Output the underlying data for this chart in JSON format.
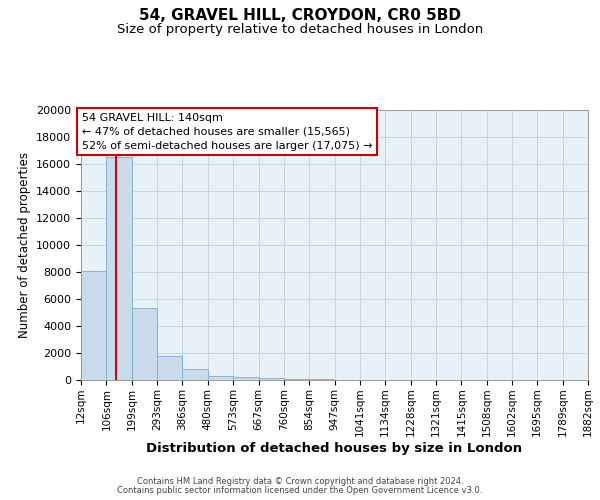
{
  "title": "54, GRAVEL HILL, CROYDON, CR0 5BD",
  "subtitle": "Size of property relative to detached houses in London",
  "xlabel": "Distribution of detached houses by size in London",
  "ylabel": "Number of detached properties",
  "bar_color": "#c9daea",
  "bar_edge_color": "#7badd4",
  "background_color": "#e8f0f8",
  "grid_color": "#b8ccd8",
  "ylim": [
    0,
    20000
  ],
  "yticks": [
    0,
    2000,
    4000,
    6000,
    8000,
    10000,
    12000,
    14000,
    16000,
    18000,
    20000
  ],
  "bin_edges": [
    12,
    106,
    199,
    293,
    386,
    480,
    573,
    667,
    760,
    854,
    947,
    1041,
    1134,
    1228,
    1321,
    1415,
    1508,
    1602,
    1695,
    1789,
    1882
  ],
  "bin_labels": [
    "12sqm",
    "106sqm",
    "199sqm",
    "293sqm",
    "386sqm",
    "480sqm",
    "573sqm",
    "667sqm",
    "760sqm",
    "854sqm",
    "947sqm",
    "1041sqm",
    "1134sqm",
    "1228sqm",
    "1321sqm",
    "1415sqm",
    "1508sqm",
    "1602sqm",
    "1695sqm",
    "1789sqm",
    "1882sqm"
  ],
  "values": [
    8100,
    16500,
    5300,
    1750,
    800,
    290,
    200,
    150,
    90,
    55,
    30,
    20,
    15,
    10,
    8,
    5,
    4,
    3,
    2,
    2
  ],
  "red_line_x": 140,
  "annotation_title": "54 GRAVEL HILL: 140sqm",
  "annotation_line1": "← 47% of detached houses are smaller (15,565)",
  "annotation_line2": "52% of semi-detached houses are larger (17,075) →",
  "annotation_box_facecolor": "#ffffff",
  "annotation_box_edgecolor": "#cc0000",
  "red_line_color": "#cc0000",
  "footer_line1": "Contains HM Land Registry data © Crown copyright and database right 2024.",
  "footer_line2": "Contains public sector information licensed under the Open Government Licence v3.0."
}
